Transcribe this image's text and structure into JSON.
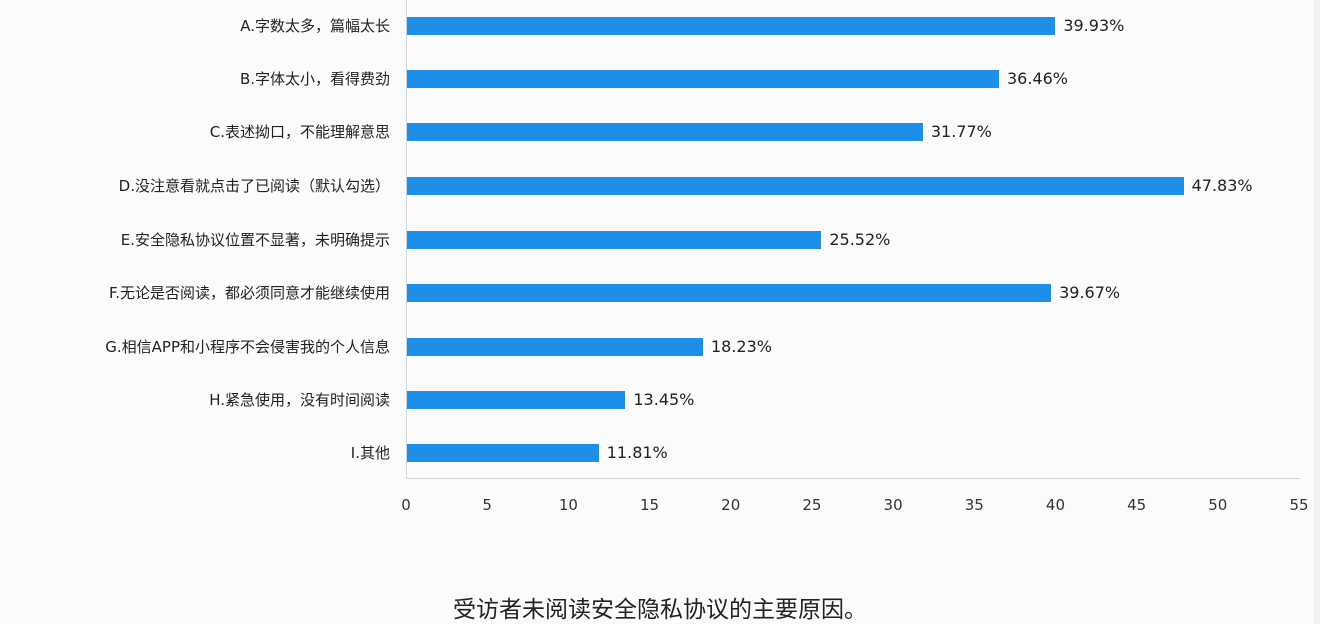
{
  "chart_data": {
    "type": "bar",
    "orientation": "horizontal",
    "title": "受访者未阅读安全隐私协议的主要原因。",
    "xlabel": "",
    "ylabel": "",
    "xlim": [
      0,
      55
    ],
    "x_ticks": [
      "0",
      "5",
      "10",
      "15",
      "20",
      "25",
      "30",
      "35",
      "40",
      "45",
      "50",
      "55"
    ],
    "grid": false,
    "legend": null,
    "bar_color": "#1e8fe8",
    "categories": [
      "A.字数太多，篇幅太长",
      "B.字体太小，看得费劲",
      "C.表述拗口，不能理解意思",
      "D.没注意看就点击了已阅读（默认勾选）",
      "E.安全隐私协议位置不显著，未明确提示",
      "F.无论是否阅读，都必须同意才能继续使用",
      "G.相信APP和小程序不会侵害我的个人信息",
      "H.紧急使用，没有时间阅读",
      "I.其他"
    ],
    "values": [
      39.93,
      36.46,
      31.77,
      47.83,
      25.52,
      39.67,
      18.23,
      13.45,
      11.81
    ],
    "value_labels": [
      "39.93%",
      "36.46%",
      "31.77%",
      "47.83%",
      "25.52%",
      "39.67%",
      "18.23%",
      "13.45%",
      "11.81%"
    ]
  },
  "caption": "受访者未阅读安全隐私协议的主要原因。"
}
